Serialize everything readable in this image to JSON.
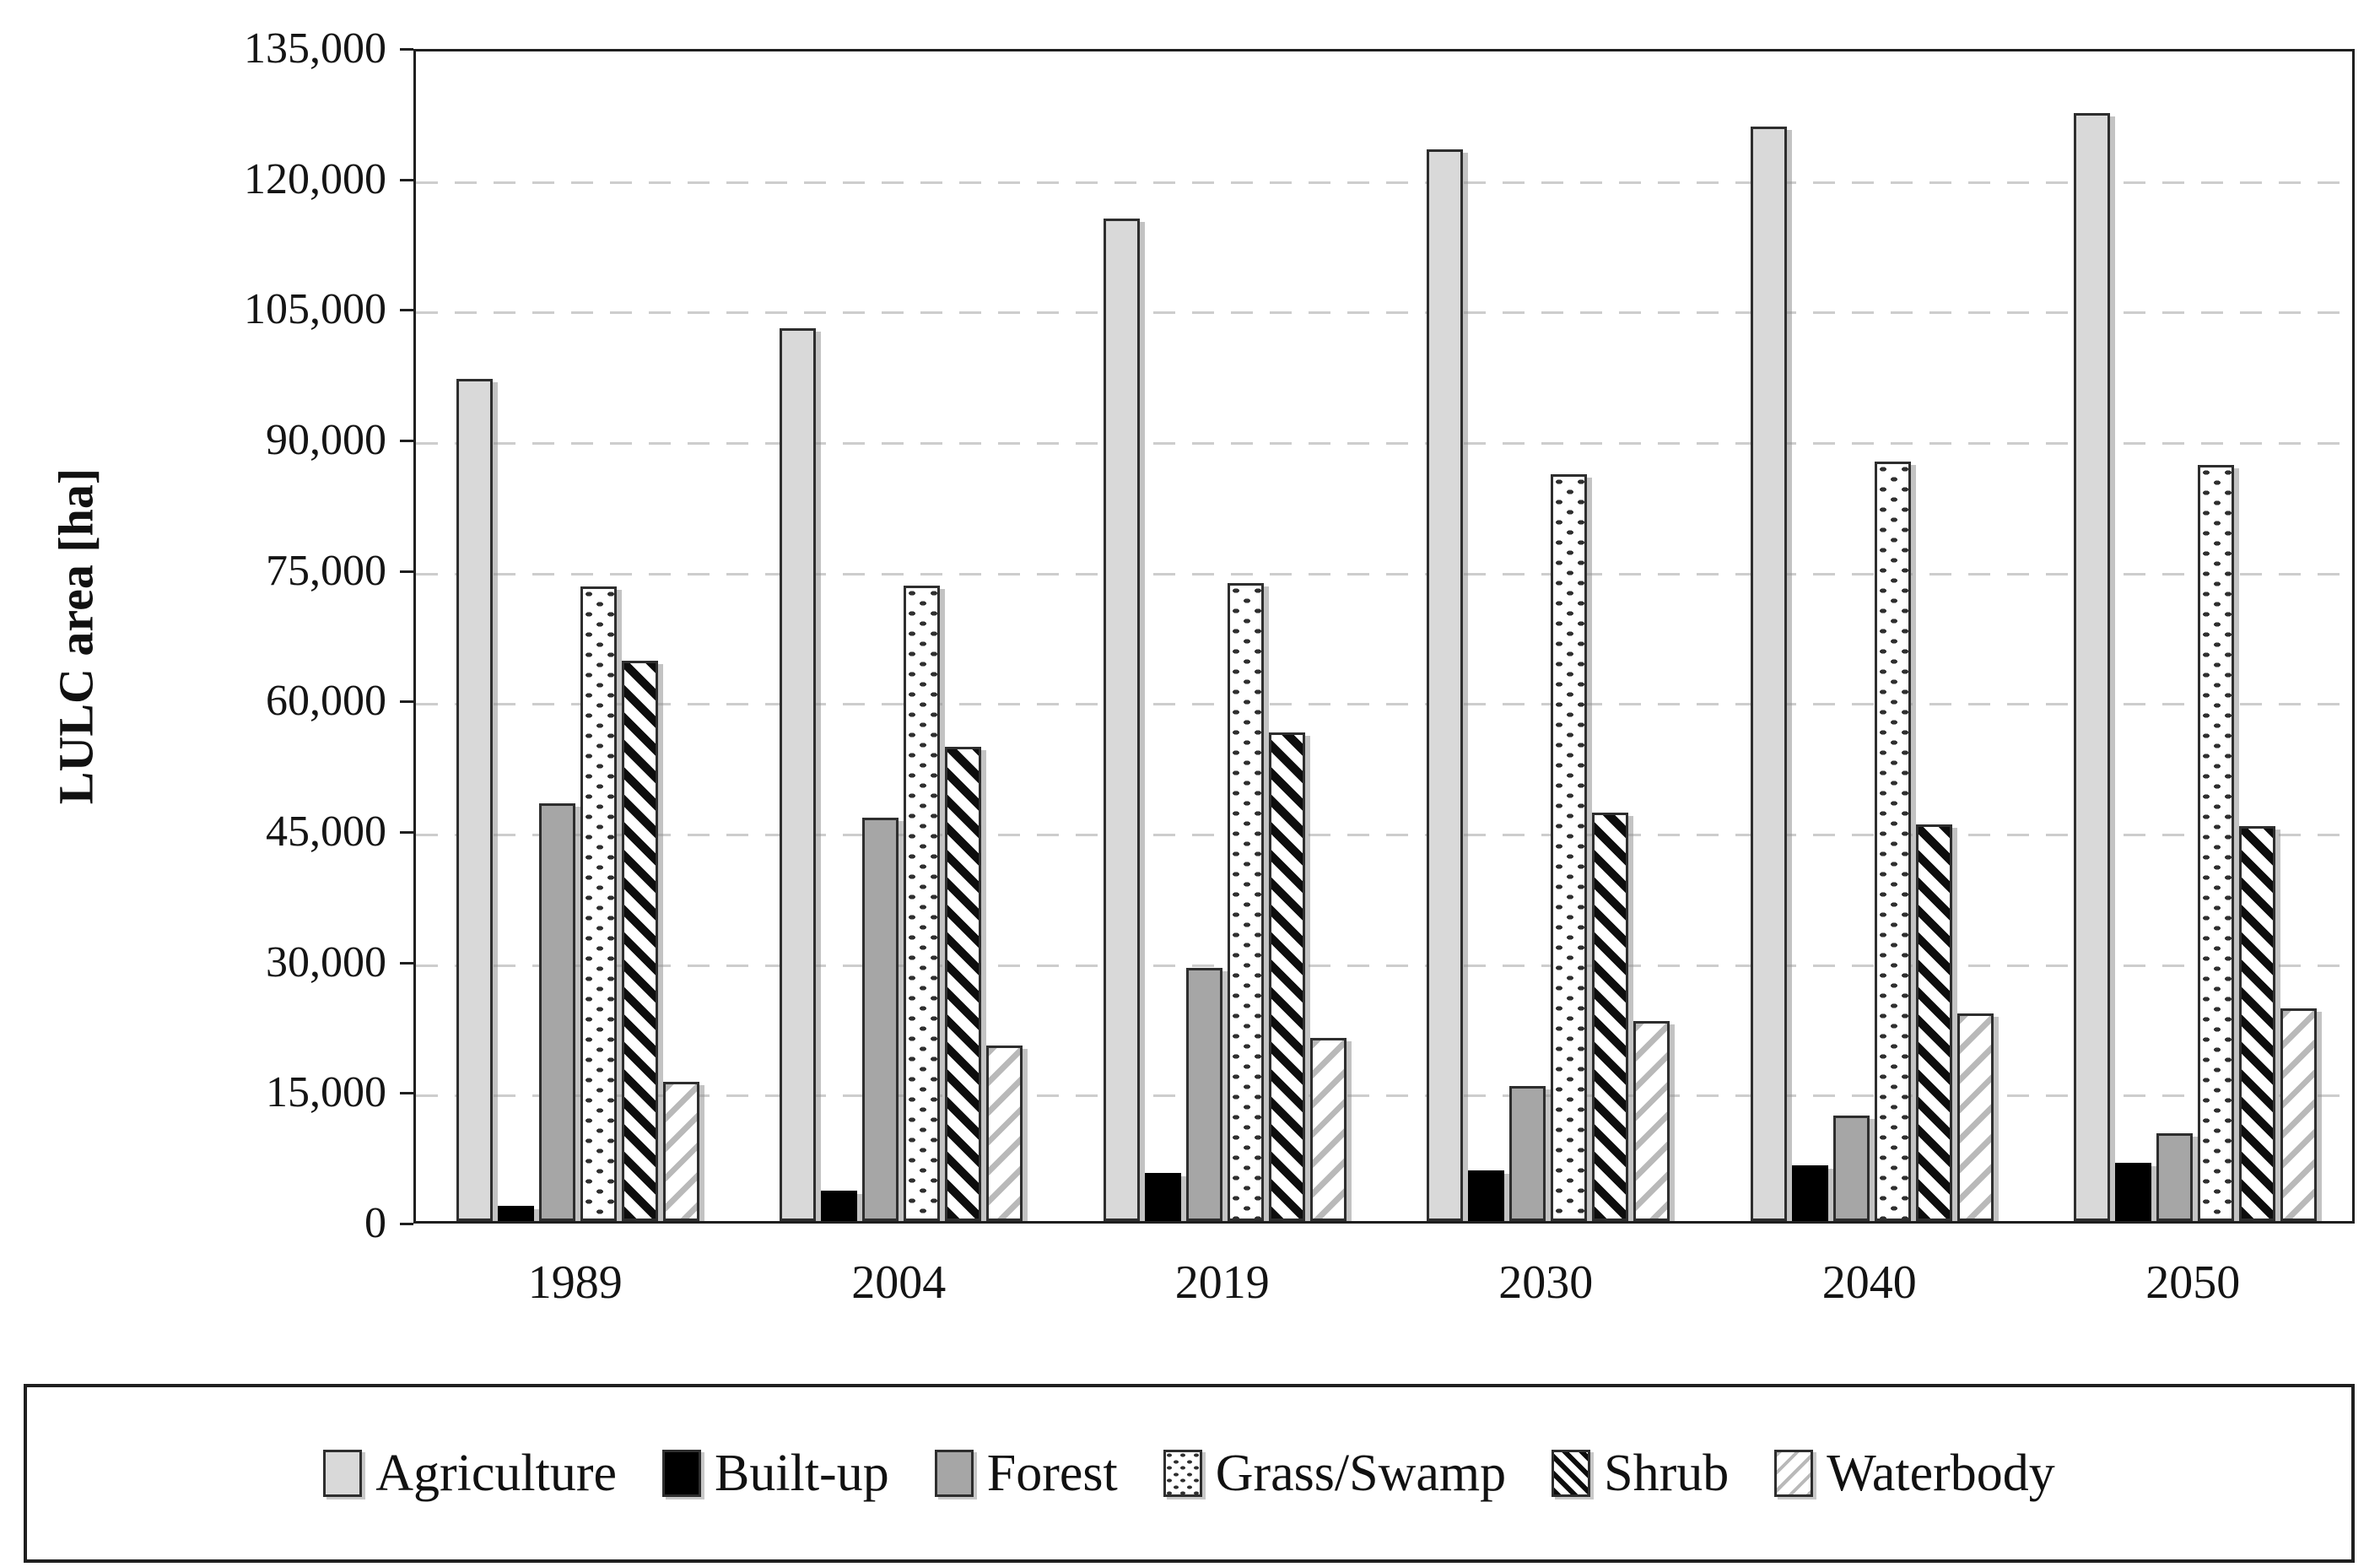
{
  "y_axis": {
    "title": "LULC area [ha]",
    "tick_labels": [
      "0",
      "15,000",
      "30,000",
      "45,000",
      "60,000",
      "75,000",
      "90,000",
      "105,000",
      "120,000",
      "135,000"
    ]
  },
  "colors": {
    "axis": "#1f1f1f",
    "grid": "#cdcdcd",
    "bar_outline": "#2e2e2e",
    "bar_shadow": "#919191",
    "agriculture_fill": "#d9d9d9",
    "builtup_fill": "#000000",
    "forest_fill": "#a6a6a6"
  },
  "chart_data": {
    "type": "bar",
    "title": "",
    "xlabel": "",
    "ylabel": "LULC area [ha]",
    "ylim": [
      0,
      135000
    ],
    "ytick_step": 15000,
    "grid": "horizontal-dashed",
    "legend_position": "bottom-boxed-row",
    "categories": [
      "1989",
      "2004",
      "2019",
      "2030",
      "2040",
      "2050"
    ],
    "series": [
      {
        "name": "Agriculture",
        "pattern": "solid",
        "fill": "#d9d9d9",
        "values": [
          96800,
          102600,
          115200,
          123200,
          125800,
          127300
        ]
      },
      {
        "name": "Built-up",
        "pattern": "solid",
        "fill": "#000000",
        "values": [
          1700,
          3500,
          5500,
          5800,
          6400,
          6700
        ]
      },
      {
        "name": "Forest",
        "pattern": "solid",
        "fill": "#a6a6a6",
        "values": [
          48000,
          46400,
          29100,
          15500,
          12100,
          10100
        ]
      },
      {
        "name": "Grass/Swamp",
        "pattern": "dots",
        "fill": "#ffffff",
        "values": [
          72900,
          73000,
          73300,
          85800,
          87300,
          86900
        ]
      },
      {
        "name": "Shrub",
        "pattern": "diagonal-bold",
        "fill": "#ffffff",
        "values": [
          64400,
          54500,
          56200,
          46900,
          45600,
          45400
        ]
      },
      {
        "name": "Waterbody",
        "pattern": "diagonal-light",
        "fill": "#ffffff",
        "values": [
          16000,
          20200,
          21000,
          23000,
          23900,
          24400
        ]
      }
    ]
  }
}
